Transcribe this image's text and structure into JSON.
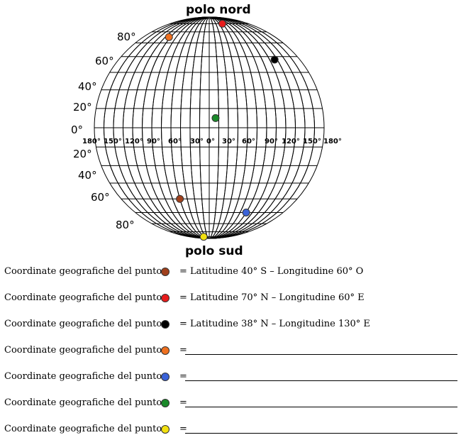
{
  "globe": {
    "north_label": "polo nord",
    "south_label": "polo sud",
    "lat_labels_north": [
      "80°",
      "60°",
      "40°",
      "20°",
      "0°"
    ],
    "lat_labels_south": [
      "20°",
      "40°",
      "60°",
      "80°"
    ],
    "lon_labels": [
      "180°",
      "150°",
      "120°",
      "90°",
      "60°",
      "30°",
      "0°",
      "30°",
      "60°",
      "90°",
      "120°",
      "150°",
      "180°"
    ]
  },
  "points": [
    {
      "id": "brown",
      "color": "#a0401c",
      "lat": -40,
      "lon": -60
    },
    {
      "id": "red",
      "color": "#e81c1c",
      "lat": 70,
      "lon": 60
    },
    {
      "id": "black",
      "color": "#000000",
      "lat": 38,
      "lon": 130
    },
    {
      "id": "orange",
      "color": "#ee7020",
      "lat": 55,
      "lon": -110
    },
    {
      "id": "blue",
      "color": "#3a62d8",
      "lat": -50,
      "lon": 90
    },
    {
      "id": "green",
      "color": "#1a8a2a",
      "lat": 5,
      "lon": 10
    },
    {
      "id": "yellow",
      "color": "#f2e010",
      "lat": -80,
      "lon": -50
    }
  ],
  "questions": [
    {
      "prefix": "Coordinate geografiche del punto",
      "answer": "= Latitudine 40° S – Longitudine 60° O"
    },
    {
      "prefix": "Coordinate geografiche del punto",
      "answer": "= Latitudine 70° N – Longitudine 60° E"
    },
    {
      "prefix": "Coordinate geografiche del punto",
      "answer": "= Latitudine 38° N – Longitudine 130° E"
    },
    {
      "prefix": "Coordinate geografiche del punto",
      "answer": "="
    },
    {
      "prefix": "Coordinate geografiche del punto",
      "answer": "="
    },
    {
      "prefix": "Coordinate geografiche del punto",
      "answer": "="
    },
    {
      "prefix": "Coordinate geografiche del punto",
      "answer": "="
    }
  ]
}
